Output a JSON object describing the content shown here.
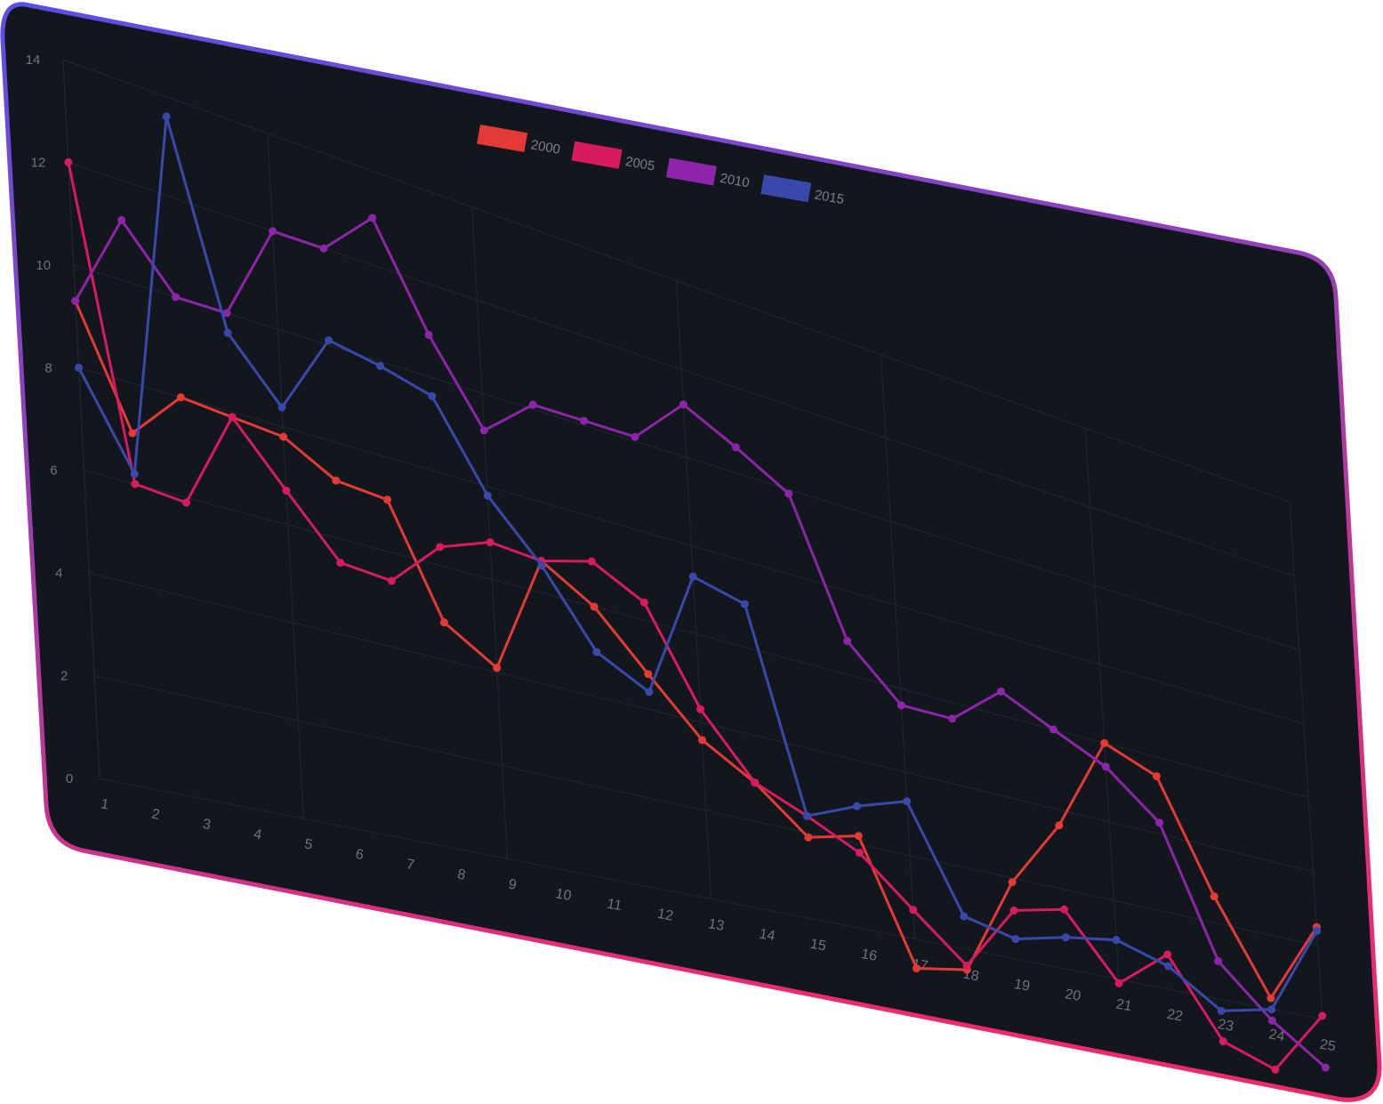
{
  "colors": {
    "background": "#12171e",
    "frame_top": "#5b4fe6",
    "frame_bottom": "#ee2a6f",
    "tick_text": "#6e737a",
    "legend_text": "#7a7f86",
    "grid": "#1f252d"
  },
  "chart_data": {
    "type": "line",
    "title": "",
    "xlabel": "",
    "ylabel": "",
    "x": [
      1,
      2,
      3,
      4,
      5,
      6,
      7,
      8,
      9,
      10,
      11,
      12,
      13,
      14,
      15,
      16,
      17,
      18,
      19,
      20,
      21,
      22,
      23,
      24,
      25
    ],
    "x_tick_labels": [
      "1",
      "2",
      "3",
      "4",
      "5",
      "6",
      "7",
      "8",
      "9",
      "10",
      "11",
      "12",
      "13",
      "14",
      "15",
      "16",
      "17",
      "18",
      "19",
      "20",
      "21",
      "22",
      "23",
      "24",
      "25"
    ],
    "y_tick_labels": [
      "0",
      "2",
      "4",
      "6",
      "8",
      "10",
      "12",
      "14"
    ],
    "ylim": [
      0,
      14
    ],
    "grid": true,
    "legend_position": "top",
    "perspective": "3d-tilted",
    "series": [
      {
        "name": "2000",
        "color": "#e53935",
        "values": [
          9.3,
          7.0,
          8.0,
          7.9,
          7.8,
          7.2,
          7.1,
          4.8,
          4.1,
          6.7,
          6.0,
          4.8,
          3.6,
          2.9,
          1.9,
          2.2,
          -0.7,
          -0.5,
          1.9,
          3.6,
          6.0,
          5.5,
          2.7,
          0.3,
          2.5
        ]
      },
      {
        "name": "2005",
        "color": "#d81b60",
        "values": [
          12.0,
          6.0,
          5.9,
          7.9,
          6.7,
          5.5,
          5.4,
          6.4,
          6.8,
          6.7,
          7.0,
          6.4,
          4.3,
          2.9,
          2.4,
          1.8,
          0.7,
          -0.4,
          1.2,
          1.5,
          -0.1,
          0.9,
          -1.1,
          -1.6,
          0.1
        ]
      },
      {
        "name": "2010",
        "color": "#8e24aa",
        "values": [
          9.3,
          11.2,
          10.0,
          10.0,
          12.0,
          12.0,
          13.0,
          10.9,
          9.2,
          10.1,
          10.1,
          10.1,
          11.2,
          10.6,
          9.9,
          6.8,
          5.6,
          5.6,
          6.6,
          6.0,
          5.4,
          4.3,
          1.0,
          -0.3,
          -1.3
        ]
      },
      {
        "name": "2015",
        "color": "#3949ab",
        "values": [
          8.0,
          6.2,
          13.6,
          9.6,
          8.4,
          10.1,
          9.9,
          9.6,
          7.8,
          6.6,
          5.0,
          4.4,
          7.3,
          7.0,
          2.4,
          2.9,
          3.3,
          0.8,
          0.5,
          0.8,
          1.0,
          0.6,
          -0.3,
          0.0,
          2.4
        ]
      }
    ]
  }
}
